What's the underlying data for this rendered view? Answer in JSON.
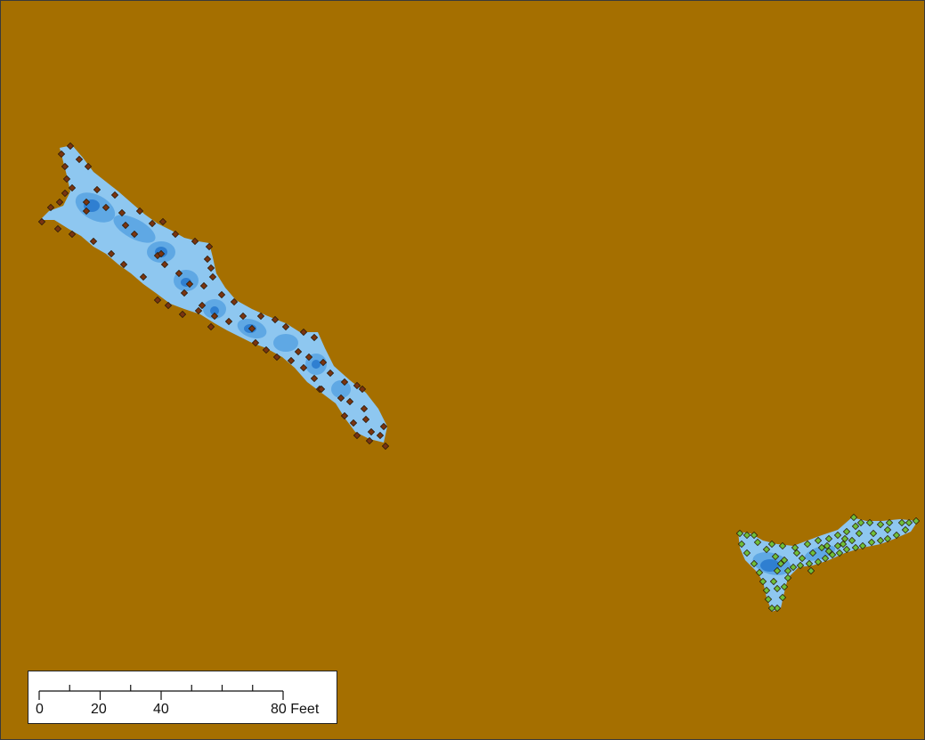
{
  "map": {
    "background_color": "#a56f00",
    "water_color_shallow": "#8ec7f0",
    "water_color_mid": "#5fa8e4",
    "water_color_deep": "#2f7fd1",
    "point_colors": {
      "western_channel": "#7a3410",
      "eastern_pond": "#6fbf3a"
    }
  },
  "scale_bar": {
    "unit": "Feet",
    "labels": [
      "0",
      "20",
      "40",
      "80 Feet"
    ],
    "tick_values": [
      0,
      10,
      20,
      30,
      40,
      50,
      60,
      70,
      80
    ]
  }
}
